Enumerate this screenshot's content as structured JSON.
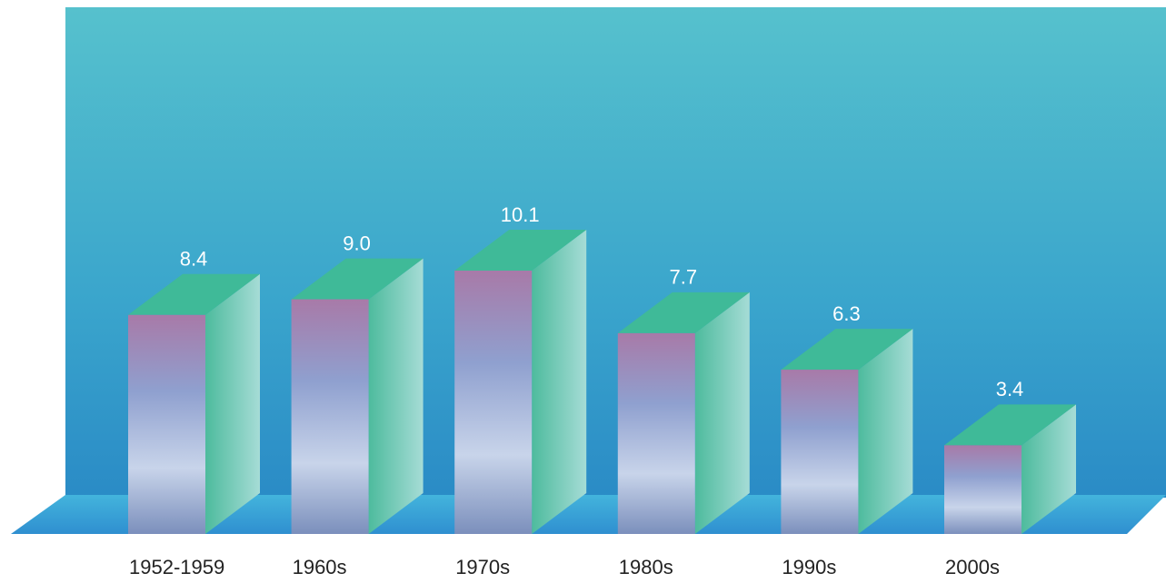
{
  "chart_data": {
    "type": "bar3d",
    "categories": [
      "1952-1959",
      "1960s",
      "1970s",
      "1980s",
      "1990s",
      "2000s"
    ],
    "values": [
      8.4,
      9.0,
      10.1,
      7.7,
      6.3,
      3.4
    ],
    "value_labels": [
      "8.4",
      "9.0",
      "10.1",
      "7.7",
      "6.3",
      "3.4"
    ]
  }
}
